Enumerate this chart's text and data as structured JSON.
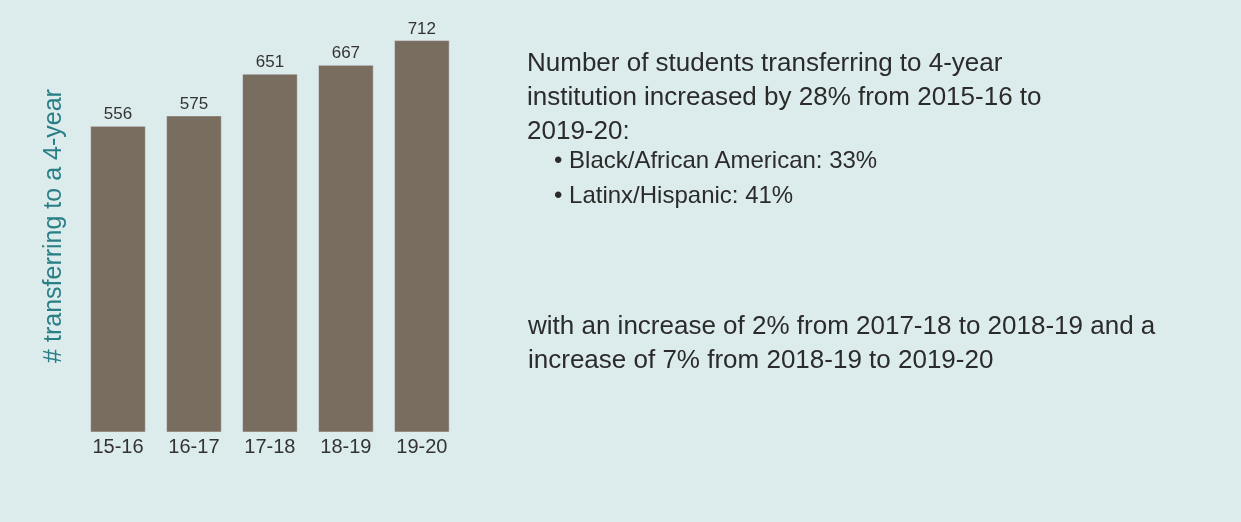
{
  "chart_data": {
    "type": "bar",
    "ylabel": "# transferring to a 4-year",
    "categories": [
      "15-16",
      "16-17",
      "17-18",
      "18-19",
      "19-20"
    ],
    "values": [
      556,
      575,
      651,
      667,
      712
    ],
    "color": "#786d5f",
    "data_labels": true,
    "tick_labels": "x",
    "grid": false,
    "annotations": [
      "Number of students transferring to 4-year institution increased by 28% from 2015-16 to 2019-20:",
      "• Black/African American: 33%",
      "• Latinx/Hispanic: 41%",
      "with an increase of 2% from 2017-18 to 2018-19 and a increase of 7% from 2018-19 to 2019-20"
    ]
  }
}
